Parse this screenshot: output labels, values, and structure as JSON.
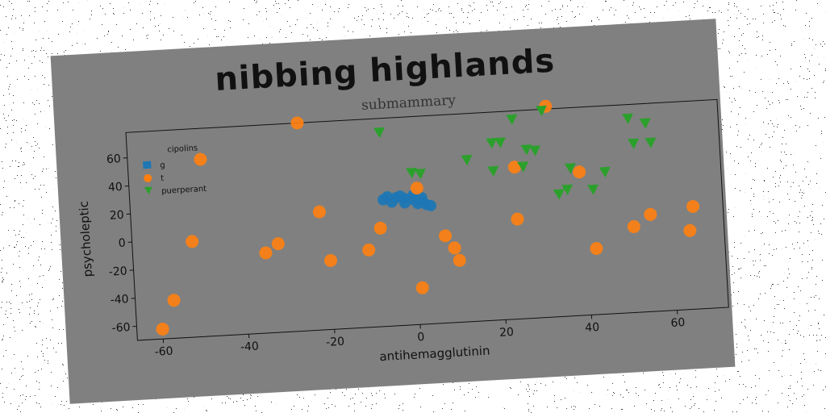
{
  "chart_data": {
    "type": "scatter",
    "title": "nibbing highlands",
    "subtitle": "submammary",
    "xlabel": "antihemagglutinin",
    "ylabel": "psycholeptic",
    "xlim": [
      -66,
      72
    ],
    "ylim": [
      -70,
      78
    ],
    "xticks": [
      "-60",
      "-40",
      "-20",
      "0",
      "20",
      "40",
      "60"
    ],
    "yticks": [
      "-60",
      "-40",
      "-20",
      "0",
      "20",
      "40",
      "60"
    ],
    "grid": false,
    "legend": {
      "title": "cipolins",
      "position": "top-left",
      "entries": [
        "g",
        "t",
        "puerperant"
      ]
    },
    "series": [
      {
        "name": "g",
        "marker": "blob",
        "color": "#1f77b4",
        "points": [
          [
            -6,
            22
          ],
          [
            -4,
            21
          ],
          [
            -2,
            20
          ],
          [
            0,
            19
          ],
          [
            2,
            17
          ],
          [
            3,
            15
          ],
          [
            -7,
            20
          ],
          [
            -5,
            18
          ],
          [
            -2,
            17
          ],
          [
            1,
            16
          ],
          [
            4,
            14
          ],
          [
            -3,
            22
          ],
          [
            0,
            22
          ],
          [
            2,
            20
          ]
        ]
      },
      {
        "name": "t",
        "marker": "circle",
        "color": "#ff7f0e",
        "points": [
          [
            -60,
            -63
          ],
          [
            -57,
            -43
          ],
          [
            -52,
            -2
          ],
          [
            -35,
            -13
          ],
          [
            -32,
            -7
          ],
          [
            -26,
            78
          ],
          [
            -22,
            14
          ],
          [
            -20,
            -21
          ],
          [
            -11,
            -15
          ],
          [
            -8,
            0
          ],
          [
            1,
            27
          ],
          [
            1,
            -44
          ],
          [
            7,
            -8
          ],
          [
            9,
            -17
          ],
          [
            10,
            -26
          ],
          [
            24,
            1
          ],
          [
            24,
            38
          ],
          [
            32,
            80
          ],
          [
            39,
            32
          ],
          [
            42,
            -23
          ],
          [
            51,
            -9
          ],
          [
            55,
            -1
          ],
          [
            64,
            -14
          ],
          [
            65,
            3
          ],
          [
            -49,
            56
          ]
        ]
      },
      {
        "name": "puerperant",
        "marker": "triangle_down",
        "color": "#2ca02c",
        "points": [
          [
            -7,
            68
          ],
          [
            0,
            38
          ],
          [
            2,
            37
          ],
          [
            13,
            45
          ],
          [
            19,
            56
          ],
          [
            21,
            56
          ],
          [
            19,
            36
          ],
          [
            24,
            72
          ],
          [
            26,
            38
          ],
          [
            27,
            50
          ],
          [
            29,
            49
          ],
          [
            31,
            77
          ],
          [
            34,
            17
          ],
          [
            36,
            20
          ],
          [
            37,
            35
          ],
          [
            42,
            19
          ],
          [
            45,
            31
          ],
          [
            51,
            68
          ],
          [
            52,
            50
          ],
          [
            55,
            64
          ],
          [
            56,
            50
          ]
        ]
      }
    ]
  }
}
